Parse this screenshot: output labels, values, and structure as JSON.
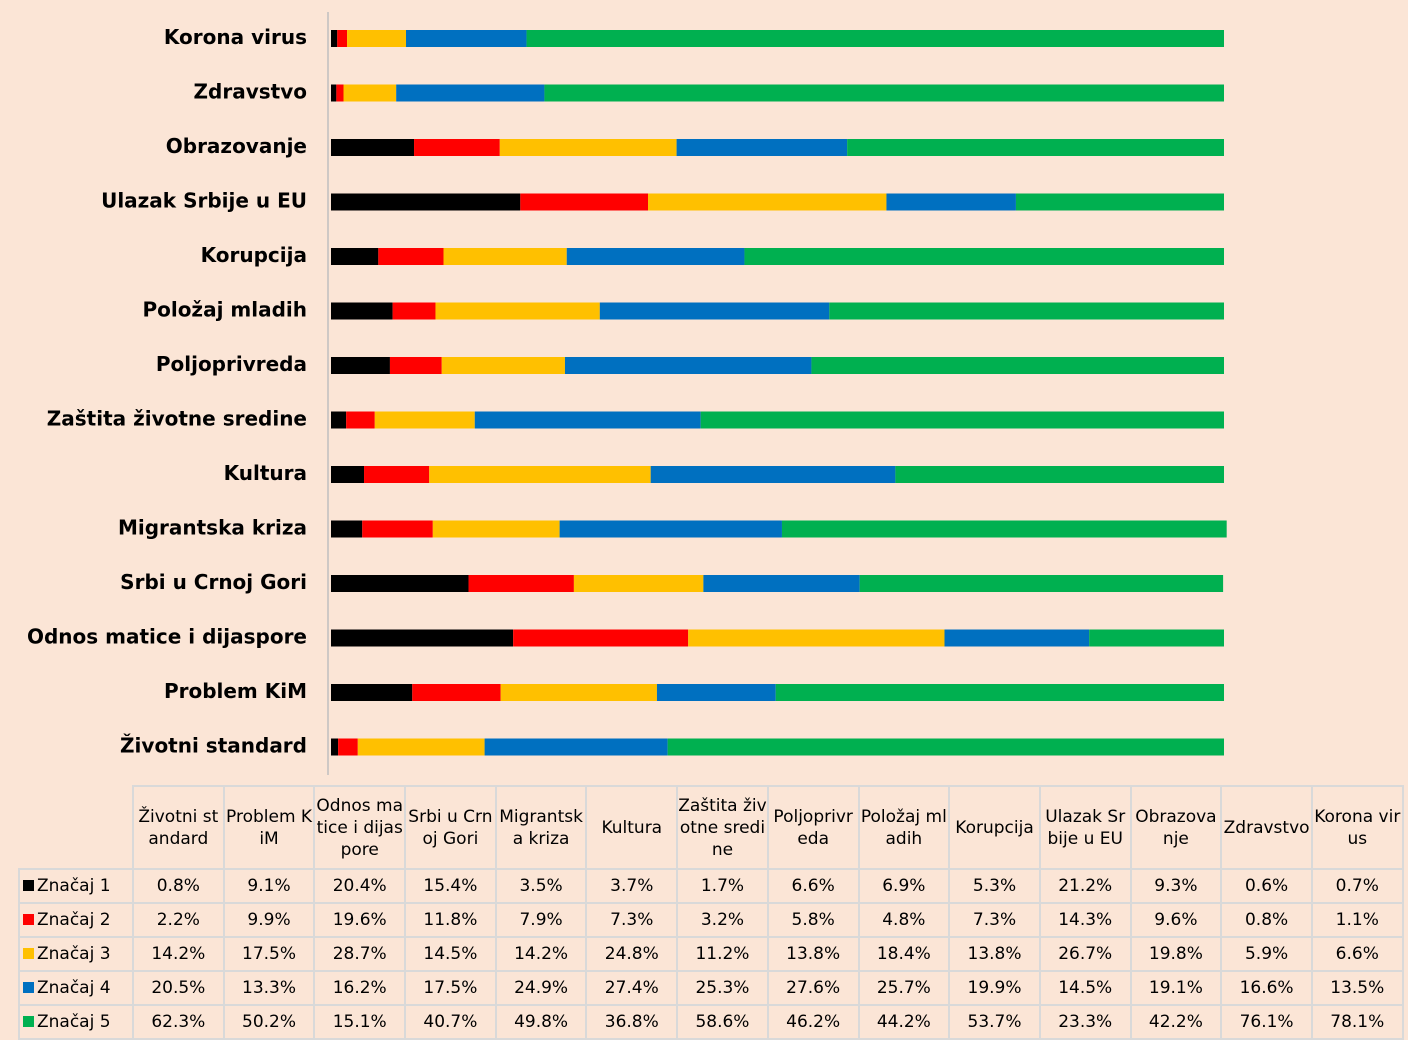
{
  "chart_data": {
    "type": "stacked-bar-horizontal",
    "categories": [
      "Životni standard",
      "Problem KiM",
      "Odnos matice i dijaspore",
      "Srbi u Crnoj Gori",
      "Migrantska kriza",
      "Kultura",
      "Zaštita životne sredine",
      "Poljoprivreda",
      "Položaj mladih",
      "Korupcija",
      "Ulazak Srbije u EU",
      "Obrazovanje",
      "Zdravstvo",
      "Korona virus"
    ],
    "xlim": [
      0,
      100
    ],
    "series": [
      {
        "name": "Značaj 1",
        "color": "#000000",
        "values": [
          0.8,
          9.1,
          20.4,
          15.4,
          3.5,
          3.7,
          1.7,
          6.6,
          6.9,
          5.3,
          21.2,
          9.3,
          0.6,
          0.7
        ],
        "value_labels": [
          "0.8%",
          "9.1%",
          "20.4%",
          "15.4%",
          "3.5%",
          "3.7%",
          "1.7%",
          "6.6%",
          "6.9%",
          "5.3%",
          "21.2%",
          "9.3%",
          "0.6%",
          "0.7%"
        ]
      },
      {
        "name": "Značaj 2",
        "color": "#ff0000",
        "values": [
          2.2,
          9.9,
          19.6,
          11.8,
          7.9,
          7.3,
          3.2,
          5.8,
          4.8,
          7.3,
          14.3,
          9.6,
          0.8,
          1.1
        ],
        "value_labels": [
          "2.2%",
          "9.9%",
          "19.6%",
          "11.8%",
          "7.9%",
          "7.3%",
          "3.2%",
          "5.8%",
          "4.8%",
          "7.3%",
          "14.3%",
          "9.6%",
          "0.8%",
          "1.1%"
        ]
      },
      {
        "name": "Značaj 3",
        "color": "#ffc000",
        "values": [
          14.2,
          17.5,
          28.7,
          14.5,
          14.2,
          24.8,
          11.2,
          13.8,
          18.4,
          13.8,
          26.7,
          19.8,
          5.9,
          6.6
        ],
        "value_labels": [
          "14.2%",
          "17.5%",
          "28.7%",
          "14.5%",
          "14.2%",
          "24.8%",
          "11.2%",
          "13.8%",
          "18.4%",
          "13.8%",
          "26.7%",
          "19.8%",
          "5.9%",
          "6.6%"
        ]
      },
      {
        "name": "Značaj 4",
        "color": "#0070c0",
        "values": [
          20.5,
          13.3,
          16.2,
          17.5,
          24.9,
          27.4,
          25.3,
          27.6,
          25.7,
          19.9,
          14.5,
          19.1,
          16.6,
          13.5
        ],
        "value_labels": [
          "20.5%",
          "13.3%",
          "16.2%",
          "17.5%",
          "24.9%",
          "27.4%",
          "25.3%",
          "27.6%",
          "25.7%",
          "19.9%",
          "14.5%",
          "19.1%",
          "16.6%",
          "13.5%"
        ]
      },
      {
        "name": "Značaj 5",
        "color": "#00b050",
        "values": [
          62.3,
          50.2,
          15.1,
          40.7,
          49.8,
          36.8,
          58.6,
          46.2,
          44.2,
          53.7,
          23.3,
          42.2,
          76.1,
          78.1
        ],
        "value_labels": [
          "62.3%",
          "50.2%",
          "15.1%",
          "40.7%",
          "49.8%",
          "36.8%",
          "58.6%",
          "46.2%",
          "44.2%",
          "53.7%",
          "23.3%",
          "42.2%",
          "76.1%",
          "78.1%"
        ]
      }
    ]
  }
}
